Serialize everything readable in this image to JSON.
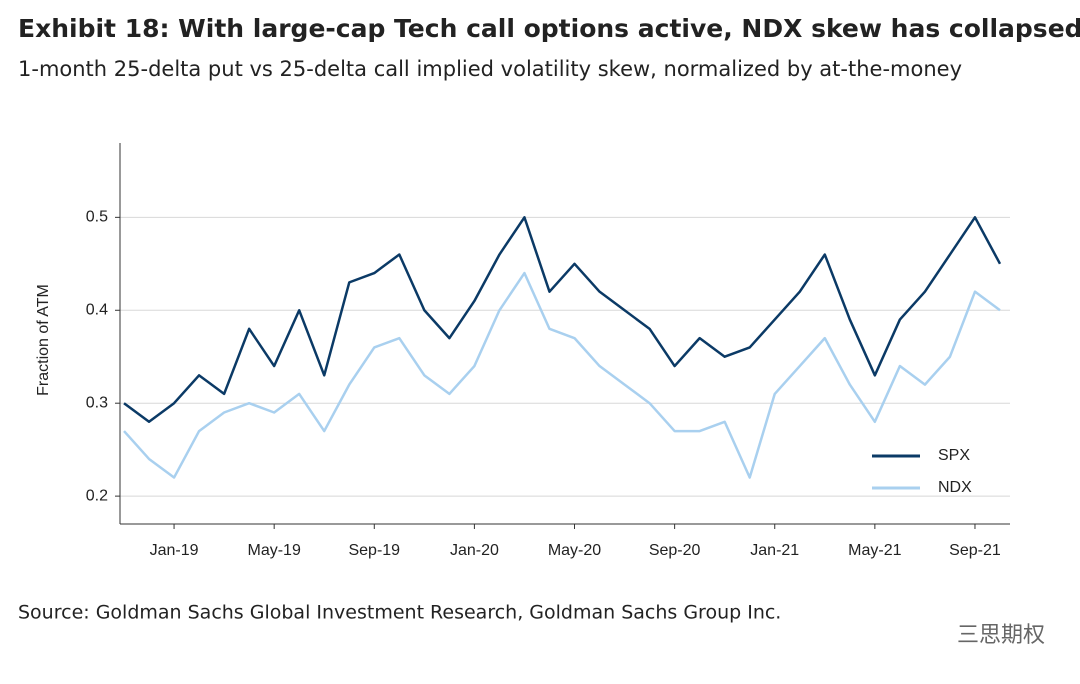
{
  "chart_data": {
    "type": "line",
    "title": "Exhibit 18: With large-cap Tech call options active, NDX skew has collapsed",
    "subtitle": "1-month 25-delta put vs 25-delta call implied volatility skew, normalized by at-the-money",
    "y_label": "Fraction of ATM",
    "source": "Source: Goldman Sachs Global Investment Research, Goldman Sachs Group Inc.",
    "watermark": "三思期权",
    "categories": [
      null,
      null,
      "Jan-19",
      null,
      null,
      null,
      "May-19",
      null,
      null,
      null,
      "Sep-19",
      null,
      null,
      null,
      "Jan-20",
      null,
      null,
      null,
      "May-20",
      null,
      null,
      null,
      "Sep-20",
      null,
      null,
      null,
      "Jan-21",
      null,
      null,
      null,
      "May-21",
      null,
      null,
      null,
      "Sep-21",
      null
    ],
    "series": [
      {
        "name": "SPX",
        "color": "#0b3a66",
        "values": [
          0.3,
          0.28,
          0.3,
          0.33,
          0.31,
          0.38,
          0.34,
          0.4,
          0.33,
          0.43,
          0.44,
          0.46,
          0.4,
          0.37,
          0.41,
          0.46,
          0.5,
          0.42,
          0.45,
          0.42,
          0.4,
          0.38,
          0.34,
          0.37,
          0.35,
          0.36,
          0.39,
          0.42,
          0.46,
          0.39,
          0.33,
          0.39,
          0.42,
          0.46,
          0.5,
          0.45
        ]
      },
      {
        "name": "NDX",
        "color": "#a9d0ef",
        "values": [
          0.27,
          0.24,
          0.22,
          0.27,
          0.29,
          0.3,
          0.29,
          0.31,
          0.27,
          0.32,
          0.36,
          0.37,
          0.33,
          0.31,
          0.34,
          0.4,
          0.44,
          0.38,
          0.37,
          0.34,
          0.32,
          0.3,
          0.27,
          0.27,
          0.28,
          0.22,
          0.31,
          0.34,
          0.37,
          0.32,
          0.28,
          0.34,
          0.32,
          0.35,
          0.42,
          0.4
        ]
      }
    ],
    "ylim": [
      0.17,
      0.58
    ],
    "yticks": [
      0.2,
      0.3,
      0.4,
      0.5
    ],
    "grid": true,
    "legend": "lower right"
  }
}
